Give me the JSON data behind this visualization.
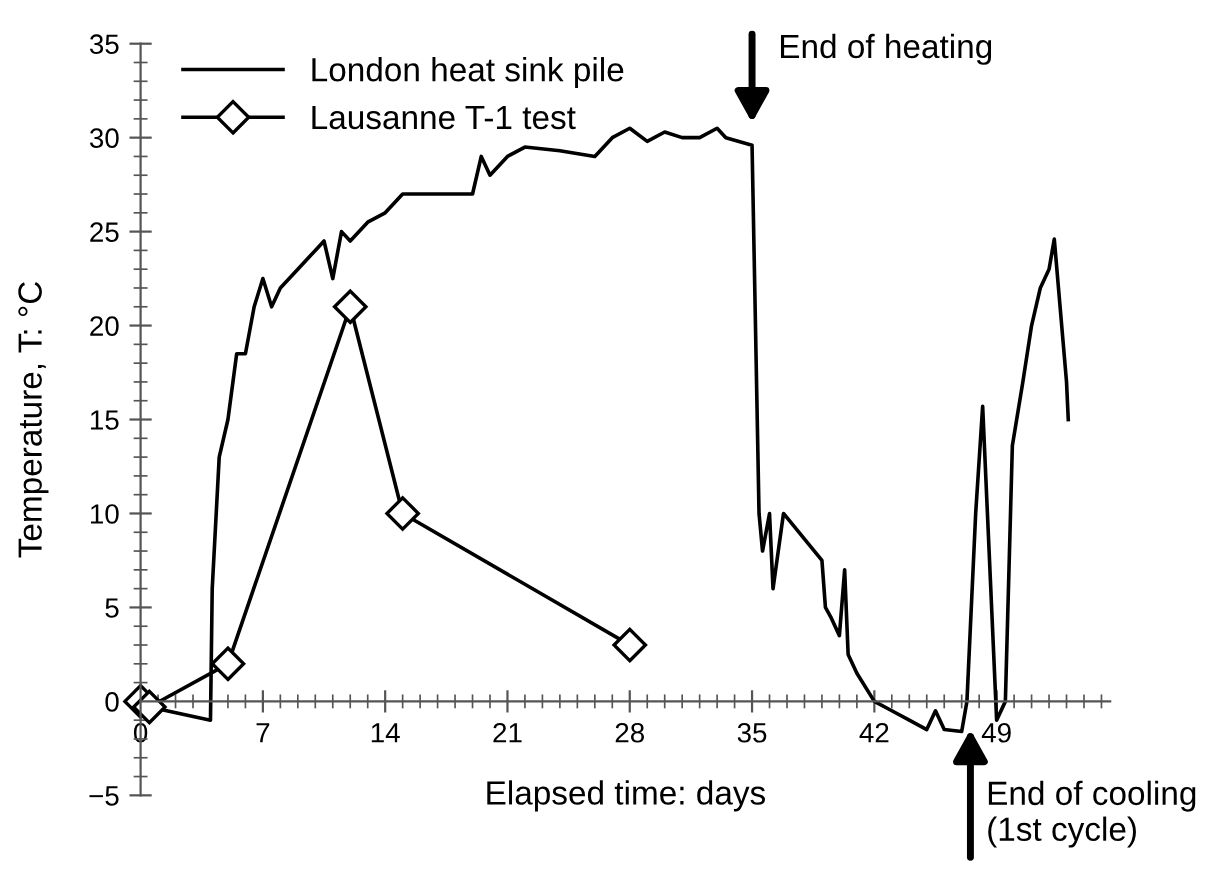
{
  "chart_data": {
    "type": "line",
    "xlabel": "Elapsed time: days",
    "ylabel": "Temperature, T: °C",
    "xlim": [
      0,
      55.5
    ],
    "ylim": [
      -5,
      35
    ],
    "xticks": [
      0,
      7,
      14,
      21,
      28,
      35,
      42,
      49
    ],
    "yticks": [
      {
        "value": -5,
        "label": "−5"
      },
      0,
      5,
      10,
      15,
      20,
      25,
      30,
      35
    ],
    "legend": "top left",
    "grid": false,
    "series": [
      {
        "name": "London heat sink pile",
        "color": "#000000",
        "marker": "none",
        "x": [
          0,
          0.5,
          4,
          4.1,
          4.5,
          5,
          5.5,
          6,
          6.5,
          7,
          7.5,
          8,
          9,
          10,
          10.5,
          11,
          11.5,
          12,
          13,
          14,
          15,
          19,
          19.5,
          20,
          21,
          22,
          24,
          26,
          27,
          28,
          29,
          30,
          31,
          32,
          33,
          33.5,
          35,
          35.4,
          35.6,
          36,
          36.2,
          36.8,
          39,
          39.2,
          39.5,
          40,
          40.3,
          40.5,
          41,
          42,
          43,
          44,
          45,
          45.5,
          46,
          47,
          47.3,
          47.8,
          48.2,
          49,
          49.5,
          49.9,
          50.5,
          51,
          51.5,
          52,
          52.3,
          53,
          53.1
        ],
        "values": [
          0,
          -0.3,
          -1,
          6,
          13,
          15,
          18.5,
          18.5,
          21,
          22.5,
          21,
          22,
          23,
          24,
          24.5,
          22.5,
          25,
          24.5,
          25.5,
          26,
          27,
          27,
          29,
          28,
          29,
          29.5,
          29.3,
          29,
          30,
          30.5,
          29.8,
          30.3,
          30,
          30,
          30.5,
          30,
          29.6,
          10,
          8,
          10,
          6,
          10,
          7.5,
          5,
          4.5,
          3.5,
          7,
          2.5,
          1.5,
          0,
          -0.5,
          -1,
          -1.5,
          -0.5,
          -1.5,
          -1.6,
          0,
          10,
          15.7,
          -1,
          0,
          13.6,
          17,
          20,
          22,
          23,
          24.6,
          17,
          15
        ]
      },
      {
        "name": "Lausanne T-1 test",
        "color": "#000000",
        "marker": "diamond",
        "x": [
          0,
          0.5,
          5,
          12,
          15,
          28
        ],
        "values": [
          0,
          -0.3,
          2,
          21,
          10,
          3
        ]
      }
    ],
    "annotations": [
      {
        "text": "End of heating",
        "x": 35,
        "y": 30
      },
      {
        "text": "End of cooling\n(1st cycle)",
        "x": 47.5,
        "y": -1.5
      }
    ]
  }
}
